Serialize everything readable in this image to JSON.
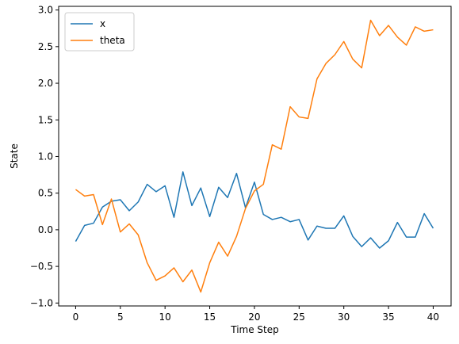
{
  "chart_data": {
    "type": "line",
    "xlabel": "Time Step",
    "ylabel": "State",
    "xlim": [
      -1.9,
      42.0
    ],
    "ylim": [
      -1.04,
      3.05
    ],
    "xticks": [
      0,
      5,
      10,
      15,
      20,
      25,
      30,
      35,
      40
    ],
    "yticks": [
      -1.0,
      -0.5,
      0.0,
      0.5,
      1.0,
      1.5,
      2.0,
      2.5,
      3.0
    ],
    "xtick_labels": [
      "0",
      "5",
      "10",
      "15",
      "20",
      "25",
      "30",
      "35",
      "40"
    ],
    "ytick_labels": [
      "−1.0",
      "−0.5",
      "0.0",
      "0.5",
      "1.0",
      "1.5",
      "2.0",
      "2.5",
      "3.0"
    ],
    "grid": false,
    "legend_position": "top-left",
    "x": [
      0,
      1,
      2,
      3,
      4,
      5,
      6,
      7,
      8,
      9,
      10,
      11,
      12,
      13,
      14,
      15,
      16,
      17,
      18,
      19,
      20,
      21,
      22,
      23,
      24,
      25,
      26,
      27,
      28,
      29,
      30,
      31,
      32,
      33,
      34,
      35,
      36,
      37,
      38,
      39,
      40
    ],
    "series": [
      {
        "name": "x",
        "color": "#1f77b4",
        "values": [
          -0.16,
          0.06,
          0.09,
          0.31,
          0.39,
          0.41,
          0.26,
          0.38,
          0.62,
          0.52,
          0.6,
          0.17,
          0.79,
          0.33,
          0.57,
          0.18,
          0.58,
          0.44,
          0.77,
          0.3,
          0.65,
          0.21,
          0.14,
          0.17,
          0.11,
          0.14,
          -0.14,
          0.05,
          0.02,
          0.02,
          0.19,
          -0.09,
          -0.23,
          -0.11,
          -0.25,
          -0.15,
          0.1,
          -0.1,
          -0.1,
          0.22,
          0.02
        ]
      },
      {
        "name": "theta",
        "color": "#ff7f0e",
        "values": [
          0.55,
          0.46,
          0.48,
          0.07,
          0.42,
          -0.03,
          0.08,
          -0.07,
          -0.45,
          -0.69,
          -0.63,
          -0.52,
          -0.71,
          -0.55,
          -0.85,
          -0.45,
          -0.17,
          -0.36,
          -0.09,
          0.29,
          0.53,
          0.62,
          1.16,
          1.1,
          1.68,
          1.54,
          1.52,
          2.06,
          2.27,
          2.39,
          2.57,
          2.33,
          2.21,
          2.86,
          2.65,
          2.79,
          2.63,
          2.52,
          2.77,
          2.71,
          2.73
        ]
      }
    ]
  }
}
